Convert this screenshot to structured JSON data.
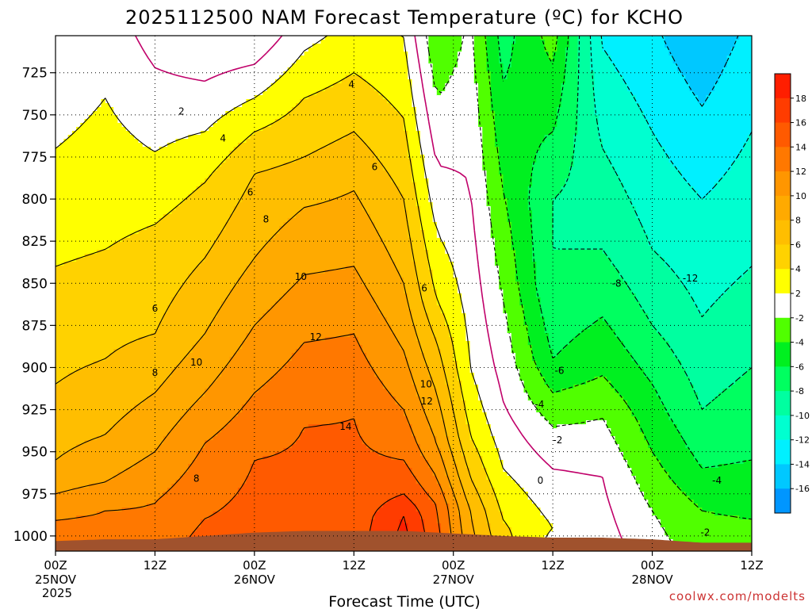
{
  "chart_data": {
    "type": "heatmap",
    "title": "2025112500 NAM Forecast Temperature (ºC) for KCHO",
    "xlabel": "Forecast Time (UTC)",
    "ylabel": "",
    "credit": "coolwx.com/modelts",
    "year_label": "2025",
    "x_ticks": [
      {
        "hour": 0,
        "label": "00Z",
        "date": "25NOV"
      },
      {
        "hour": 12,
        "label": "12Z",
        "date": ""
      },
      {
        "hour": 24,
        "label": "00Z",
        "date": "26NOV"
      },
      {
        "hour": 36,
        "label": "12Z",
        "date": ""
      },
      {
        "hour": 48,
        "label": "00Z",
        "date": "27NOV"
      },
      {
        "hour": 60,
        "label": "12Z",
        "date": ""
      },
      {
        "hour": 72,
        "label": "00Z",
        "date": "28NOV"
      },
      {
        "hour": 84,
        "label": "12Z",
        "date": ""
      }
    ],
    "xlim": [
      0,
      84
    ],
    "y_ticks": [
      725,
      750,
      775,
      800,
      825,
      850,
      875,
      900,
      925,
      950,
      975,
      1000
    ],
    "ylim": [
      1009,
      703
    ],
    "colorbar": {
      "ticks": [
        18,
        16,
        14,
        12,
        10,
        8,
        6,
        4,
        2,
        -2,
        -4,
        -6,
        -8,
        -10,
        -12,
        -14,
        -16
      ],
      "levels": [
        {
          "lo": 18,
          "hi": 20,
          "color": "#ff1e00"
        },
        {
          "lo": 16,
          "hi": 18,
          "color": "#ff3c00"
        },
        {
          "lo": 14,
          "hi": 16,
          "color": "#ff5a00"
        },
        {
          "lo": 12,
          "hi": 14,
          "color": "#ff7800"
        },
        {
          "lo": 10,
          "hi": 12,
          "color": "#ff9600"
        },
        {
          "lo": 8,
          "hi": 10,
          "color": "#ffaa00"
        },
        {
          "lo": 6,
          "hi": 8,
          "color": "#ffbe00"
        },
        {
          "lo": 4,
          "hi": 6,
          "color": "#ffd200"
        },
        {
          "lo": 2,
          "hi": 4,
          "color": "#ffff00"
        },
        {
          "lo": -2,
          "hi": 2,
          "color": "#ffffff"
        },
        {
          "lo": -4,
          "hi": -2,
          "color": "#50ff00"
        },
        {
          "lo": -6,
          "hi": -4,
          "color": "#00f020"
        },
        {
          "lo": -8,
          "hi": -6,
          "color": "#00ff60"
        },
        {
          "lo": -10,
          "hi": -8,
          "color": "#00ffa0"
        },
        {
          "lo": -12,
          "hi": -10,
          "color": "#00ffd0"
        },
        {
          "lo": -14,
          "hi": -12,
          "color": "#00f0ff"
        },
        {
          "lo": -16,
          "hi": -14,
          "color": "#00c8ff"
        },
        {
          "lo": -18,
          "hi": -16,
          "color": "#0096ff"
        }
      ]
    },
    "columns": [
      {
        "hour": 0,
        "psfc": 1003,
        "bounds": [
          {
            "p": 840,
            "t": 4
          },
          {
            "p": 910,
            "t": 6
          },
          {
            "p": 955,
            "t": 8
          },
          {
            "p": 975,
            "t": 10
          },
          {
            "p": 990,
            "t": 12
          }
        ]
      },
      {
        "hour": 6,
        "psfc": 1002,
        "bounds": [
          {
            "p": 740,
            "t": 2
          },
          {
            "p": 830,
            "t": 4
          },
          {
            "p": 895,
            "t": 6
          },
          {
            "p": 940,
            "t": 8
          },
          {
            "p": 968,
            "t": 10
          },
          {
            "p": 985,
            "t": 12
          }
        ]
      },
      {
        "hour": 12,
        "psfc": 1002,
        "bounds": [
          {
            "p": 722,
            "t": 0
          },
          {
            "p": 772,
            "t": 2
          },
          {
            "p": 815,
            "t": 4
          },
          {
            "p": 880,
            "t": 6
          },
          {
            "p": 915,
            "t": 8
          },
          {
            "p": 950,
            "t": 10
          },
          {
            "p": 980,
            "t": 12
          }
        ]
      },
      {
        "hour": 18,
        "psfc": 1000,
        "bounds": [
          {
            "p": 760,
            "t": 2
          },
          {
            "p": 790,
            "t": 4
          },
          {
            "p": 835,
            "t": 6
          },
          {
            "p": 880,
            "t": 8
          },
          {
            "p": 915,
            "t": 10
          },
          {
            "p": 945,
            "t": 12
          },
          {
            "p": 990,
            "t": 14
          }
        ]
      },
      {
        "hour": 24,
        "psfc": 998,
        "bounds": [
          {
            "p": 740,
            "t": 2
          },
          {
            "p": 760,
            "t": 4
          },
          {
            "p": 785,
            "t": 6
          },
          {
            "p": 835,
            "t": 8
          },
          {
            "p": 875,
            "t": 10
          },
          {
            "p": 915,
            "t": 12
          },
          {
            "p": 955,
            "t": 14
          }
        ]
      },
      {
        "hour": 30,
        "psfc": 997,
        "bounds": [
          {
            "p": 712,
            "t": 2
          },
          {
            "p": 740,
            "t": 4
          },
          {
            "p": 775,
            "t": 6
          },
          {
            "p": 805,
            "t": 8
          },
          {
            "p": 845,
            "t": 10
          },
          {
            "p": 885,
            "t": 12
          },
          {
            "p": 935,
            "t": 14
          }
        ]
      },
      {
        "hour": 36,
        "psfc": 997,
        "bounds": [
          {
            "p": 725,
            "t": 4
          },
          {
            "p": 760,
            "t": 6
          },
          {
            "p": 795,
            "t": 8
          },
          {
            "p": 840,
            "t": 10
          },
          {
            "p": 880,
            "t": 12
          },
          {
            "p": 930,
            "t": 14
          }
        ]
      },
      {
        "hour": 42,
        "psfc": 997,
        "bounds": [
          {
            "p": 752,
            "t": 4
          },
          {
            "p": 800,
            "t": 6
          },
          {
            "p": 850,
            "t": 8
          },
          {
            "p": 890,
            "t": 10
          },
          {
            "p": 925,
            "t": 12
          },
          {
            "p": 955,
            "t": 14
          },
          {
            "p": 975,
            "t": 16
          },
          {
            "p": 988,
            "t": 18
          }
        ]
      },
      {
        "hour": 46,
        "psfc": 998,
        "bounds": [
          {
            "p": 820,
            "t": 2
          },
          {
            "p": 860,
            "t": 4
          },
          {
            "p": 885,
            "t": 6
          },
          {
            "p": 915,
            "t": 8
          },
          {
            "p": 945,
            "t": 10
          },
          {
            "p": 965,
            "t": 12
          },
          {
            "p": 982,
            "t": 14
          }
        ]
      },
      {
        "hour": 50,
        "psfc": 999,
        "bounds": [
          {
            "p": 790,
            "t": 0
          },
          {
            "p": 900,
            "t": 2
          },
          {
            "p": 940,
            "t": 4
          },
          {
            "p": 965,
            "t": 6
          },
          {
            "p": 985,
            "t": 8
          }
        ]
      },
      {
        "hour": 54,
        "psfc": 1000,
        "bounds": [
          {
            "p": 795,
            "t": -4
          },
          {
            "p": 860,
            "t": -2
          },
          {
            "p": 920,
            "t": 0
          },
          {
            "p": 960,
            "t": 2
          },
          {
            "p": 990,
            "t": 4
          }
        ]
      },
      {
        "hour": 60,
        "psfc": 1001,
        "bounds": [
          {
            "p": 760,
            "t": -6
          },
          {
            "p": 800,
            "t": -8
          },
          {
            "p": 850,
            "t": -8
          },
          {
            "p": 895,
            "t": -6
          },
          {
            "p": 915,
            "t": -4
          },
          {
            "p": 935,
            "t": -2
          },
          {
            "p": 960,
            "t": 0
          },
          {
            "p": 995,
            "t": 2
          }
        ]
      },
      {
        "hour": 66,
        "psfc": 1001,
        "bounds": [
          {
            "p": 770,
            "t": -10
          },
          {
            "p": 830,
            "t": -8
          },
          {
            "p": 870,
            "t": -6
          },
          {
            "p": 905,
            "t": -4
          },
          {
            "p": 930,
            "t": -2
          },
          {
            "p": 965,
            "t": 0
          }
        ]
      },
      {
        "hour": 72,
        "psfc": 1002,
        "bounds": [
          {
            "p": 760,
            "t": -12
          },
          {
            "p": 830,
            "t": -10
          },
          {
            "p": 875,
            "t": -8
          },
          {
            "p": 910,
            "t": -6
          },
          {
            "p": 950,
            "t": -4
          },
          {
            "p": 985,
            "t": -2
          }
        ]
      },
      {
        "hour": 78,
        "psfc": 1004,
        "bounds": [
          {
            "p": 745,
            "t": -14
          },
          {
            "p": 800,
            "t": -12
          },
          {
            "p": 870,
            "t": -10
          },
          {
            "p": 925,
            "t": -8
          },
          {
            "p": 960,
            "t": -6
          },
          {
            "p": 985,
            "t": -4
          }
        ]
      },
      {
        "hour": 84,
        "psfc": 1004,
        "bounds": [
          {
            "p": 760,
            "t": -12
          },
          {
            "p": 840,
            "t": -10
          },
          {
            "p": 900,
            "t": -8
          },
          {
            "p": 955,
            "t": -6
          },
          {
            "p": 990,
            "t": -4
          }
        ]
      }
    ],
    "contour_labels": [
      {
        "text": "2",
        "hour": 15.2,
        "p": 748
      },
      {
        "text": "4",
        "hour": 20.2,
        "p": 764
      },
      {
        "text": "4",
        "hour": 35.7,
        "p": 732
      },
      {
        "text": "6",
        "hour": 38.5,
        "p": 781
      },
      {
        "text": "6",
        "hour": 23.5,
        "p": 796
      },
      {
        "text": "8",
        "hour": 25.4,
        "p": 812
      },
      {
        "text": "10",
        "hour": 29.6,
        "p": 846
      },
      {
        "text": "6",
        "hour": 12.0,
        "p": 865
      },
      {
        "text": "6",
        "hour": 44.5,
        "p": 853
      },
      {
        "text": "12",
        "hour": 31.4,
        "p": 882
      },
      {
        "text": "10",
        "hour": 17.0,
        "p": 897
      },
      {
        "text": "8",
        "hour": 12.0,
        "p": 903
      },
      {
        "text": "10",
        "hour": 44.7,
        "p": 910
      },
      {
        "text": "12",
        "hour": 44.8,
        "p": 920
      },
      {
        "text": "14",
        "hour": 35.0,
        "p": 935
      },
      {
        "text": "8",
        "hour": 17.0,
        "p": 966
      },
      {
        "text": "-8",
        "hour": 67.7,
        "p": 850
      },
      {
        "text": "-12",
        "hour": 76.6,
        "p": 847
      },
      {
        "text": "-6",
        "hour": 60.8,
        "p": 902
      },
      {
        "text": "-4",
        "hour": 58.4,
        "p": 922
      },
      {
        "text": "-2",
        "hour": 60.6,
        "p": 943
      },
      {
        "text": "0",
        "hour": 58.5,
        "p": 967
      },
      {
        "text": "-4",
        "hour": 79.8,
        "p": 967
      },
      {
        "text": "-2",
        "hour": 78.4,
        "p": 998
      }
    ],
    "grid": true
  }
}
